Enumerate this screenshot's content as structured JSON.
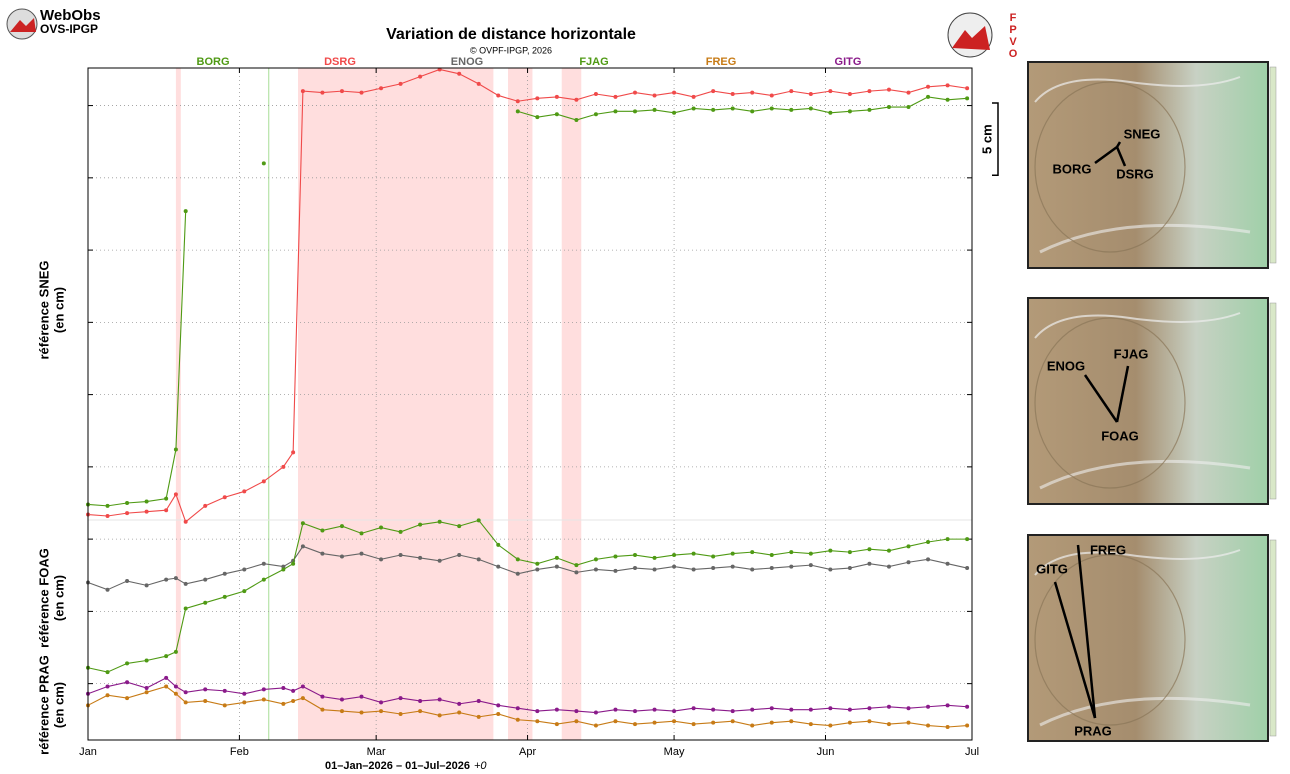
{
  "chart_data": {
    "type": "line",
    "title": "Variation de distance horizontale",
    "subtitle": "© OVPF-IPGP, 2026",
    "xlabel": "01–Jan–2026 – 01–Jul–2026",
    "xlabel_suffix": "+0",
    "panel_labels": [
      {
        "label": "référence SNEG",
        "unit": "(en cm)"
      },
      {
        "label": "référence FOAG",
        "unit": "(en cm)"
      },
      {
        "label": "référence PRAG",
        "unit": "(en cm)"
      }
    ],
    "xlim": [
      "2026-01-01",
      "2026-07-01"
    ],
    "xticks": [
      {
        "value": "2026-01-01",
        "label": "Jan"
      },
      {
        "value": "2026-02-01",
        "label": "Feb"
      },
      {
        "value": "2026-03-01",
        "label": "Mar"
      },
      {
        "value": "2026-04-01",
        "label": "Apr"
      },
      {
        "value": "2026-05-01",
        "label": "May"
      },
      {
        "value": "2026-06-01",
        "label": "Jun"
      },
      {
        "value": "2026-07-01",
        "label": "Jul"
      }
    ],
    "ylim": [
      -3.9,
      42.6
    ],
    "yticks": [
      0,
      5,
      10,
      15,
      20,
      25,
      30,
      35,
      40
    ],
    "grid": true,
    "scale_bar": {
      "value": 5,
      "label": "5 cm"
    },
    "highlight_periods": [
      [
        "2026-01-19",
        "2026-01-20"
      ],
      [
        "2026-02-13",
        "2026-03-25"
      ],
      [
        "2026-03-28",
        "2026-04-02"
      ],
      [
        "2026-04-08",
        "2026-04-12"
      ]
    ],
    "highlight_color": "#ffdede",
    "marker_dates": [
      "2026-02-07"
    ],
    "x": [
      "2026-01-01",
      "2026-01-05",
      "2026-01-09",
      "2026-01-13",
      "2026-01-17",
      "2026-01-19",
      "2026-01-21",
      "2026-01-25",
      "2026-01-29",
      "2026-02-02",
      "2026-02-06",
      "2026-02-10",
      "2026-02-12",
      "2026-02-14",
      "2026-02-18",
      "2026-02-22",
      "2026-02-26",
      "2026-03-02",
      "2026-03-06",
      "2026-03-10",
      "2026-03-14",
      "2026-03-18",
      "2026-03-22",
      "2026-03-26",
      "2026-03-30",
      "2026-04-03",
      "2026-04-07",
      "2026-04-11",
      "2026-04-15",
      "2026-04-19",
      "2026-04-23",
      "2026-04-27",
      "2026-05-01",
      "2026-05-05",
      "2026-05-09",
      "2026-05-13",
      "2026-05-17",
      "2026-05-21",
      "2026-05-25",
      "2026-05-29",
      "2026-06-02",
      "2026-06-06",
      "2026-06-10",
      "2026-06-14",
      "2026-06-18",
      "2026-06-22",
      "2026-06-26",
      "2026-06-30"
    ],
    "series": [
      {
        "name": "BORG",
        "color": "#4f9a14",
        "values": [
          12.4,
          12.3,
          12.5,
          12.6,
          12.8,
          16.2,
          32.7,
          null,
          null,
          null,
          36.0,
          null,
          null,
          null,
          null,
          null,
          null,
          null,
          null,
          null,
          null,
          null,
          null,
          null,
          39.6,
          39.2,
          39.4,
          39.0,
          39.4,
          39.6,
          39.6,
          39.7,
          39.5,
          39.8,
          39.7,
          39.8,
          39.6,
          39.8,
          39.7,
          39.8,
          39.5,
          39.6,
          39.7,
          39.9,
          39.9,
          40.6,
          40.4,
          40.5
        ]
      },
      {
        "name": "DSRG",
        "color": "#f04a4a",
        "values": [
          11.7,
          11.6,
          11.8,
          11.9,
          12.0,
          13.1,
          11.2,
          12.3,
          12.9,
          13.3,
          14.0,
          15.0,
          16.0,
          41.0,
          40.9,
          41.0,
          40.9,
          41.2,
          41.5,
          42.0,
          42.5,
          42.2,
          41.5,
          40.7,
          40.3,
          40.5,
          40.6,
          40.4,
          40.8,
          40.6,
          40.9,
          40.7,
          40.9,
          40.6,
          41.0,
          40.8,
          40.9,
          40.7,
          41.0,
          40.8,
          41.0,
          40.8,
          41.0,
          41.1,
          40.9,
          41.3,
          41.4,
          41.2
        ]
      },
      {
        "name": "ENOG",
        "color": "#666666",
        "values": [
          7.0,
          6.5,
          7.1,
          6.8,
          7.2,
          7.3,
          6.9,
          7.2,
          7.6,
          7.9,
          8.3,
          8.1,
          8.5,
          9.5,
          9.0,
          8.8,
          9.0,
          8.6,
          8.9,
          8.7,
          8.5,
          8.9,
          8.6,
          8.1,
          7.6,
          7.9,
          8.1,
          7.7,
          7.9,
          7.8,
          8.0,
          7.9,
          8.1,
          7.9,
          8.0,
          8.1,
          7.9,
          8.0,
          8.1,
          8.2,
          7.9,
          8.0,
          8.3,
          8.1,
          8.4,
          8.6,
          8.3,
          8.0
        ]
      },
      {
        "name": "FJAG",
        "color": "#4f9a14",
        "values": [
          1.1,
          0.8,
          1.4,
          1.6,
          1.9,
          2.2,
          5.2,
          5.6,
          6.0,
          6.4,
          7.2,
          7.9,
          8.3,
          11.1,
          10.6,
          10.9,
          10.4,
          10.8,
          10.5,
          11.0,
          11.2,
          10.9,
          11.3,
          9.6,
          8.6,
          8.3,
          8.7,
          8.2,
          8.6,
          8.8,
          8.9,
          8.7,
          8.9,
          9.0,
          8.8,
          9.0,
          9.1,
          8.9,
          9.1,
          9.0,
          9.2,
          9.1,
          9.3,
          9.2,
          9.5,
          9.8,
          10.0,
          10.0
        ]
      },
      {
        "name": "FREG",
        "color": "#c77b16",
        "values": [
          -1.5,
          -0.8,
          -1.0,
          -0.6,
          -0.2,
          -0.7,
          -1.3,
          -1.2,
          -1.5,
          -1.3,
          -1.1,
          -1.4,
          -1.2,
          -1.0,
          -1.8,
          -1.9,
          -2.0,
          -1.9,
          -2.1,
          -1.9,
          -2.2,
          -2.0,
          -2.3,
          -2.1,
          -2.5,
          -2.6,
          -2.8,
          -2.6,
          -2.9,
          -2.6,
          -2.8,
          -2.7,
          -2.6,
          -2.8,
          -2.7,
          -2.6,
          -2.9,
          -2.7,
          -2.6,
          -2.8,
          -2.9,
          -2.7,
          -2.6,
          -2.8,
          -2.7,
          -2.9,
          -3.0,
          -2.9
        ]
      },
      {
        "name": "GITG",
        "color": "#8a1a8a",
        "values": [
          -0.7,
          -0.2,
          0.1,
          -0.3,
          0.4,
          -0.2,
          -0.6,
          -0.4,
          -0.5,
          -0.7,
          -0.4,
          -0.3,
          -0.5,
          -0.2,
          -0.9,
          -1.1,
          -0.9,
          -1.3,
          -1.0,
          -1.2,
          -1.1,
          -1.4,
          -1.2,
          -1.5,
          -1.7,
          -1.9,
          -1.8,
          -1.9,
          -2.0,
          -1.8,
          -1.9,
          -1.8,
          -1.9,
          -1.7,
          -1.8,
          -1.9,
          -1.8,
          -1.7,
          -1.8,
          -1.8,
          -1.7,
          -1.8,
          -1.7,
          -1.6,
          -1.7,
          -1.6,
          -1.5,
          -1.6
        ]
      }
    ]
  },
  "header": {
    "logo_top": "WebObs",
    "logo_bottom": "OVS-IPGP",
    "badge": [
      "O",
      "V",
      "P",
      "F"
    ]
  },
  "maps": [
    {
      "labels": [
        "SNEG",
        "BORG",
        "DSRG"
      ]
    },
    {
      "labels": [
        "ENOG",
        "FJAG",
        "FOAG"
      ]
    },
    {
      "labels": [
        "GITG",
        "FREG",
        "PRAG"
      ]
    }
  ]
}
